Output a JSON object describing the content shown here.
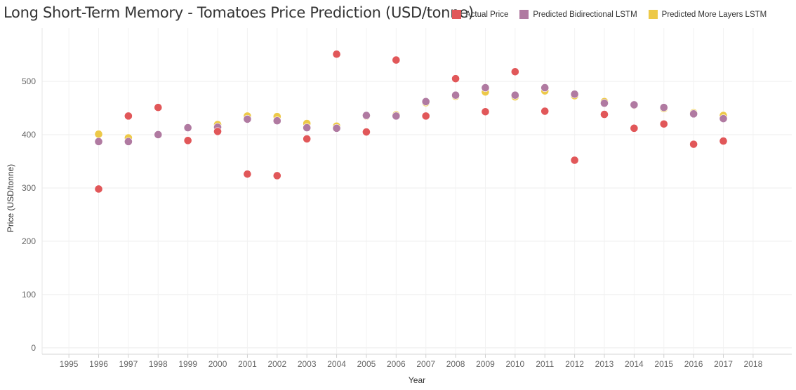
{
  "title": "Long Short-Term Memory - Tomatoes Price Prediction (USD/tonne)",
  "legend": [
    {
      "label": "Actual Price",
      "color": "#e15759"
    },
    {
      "label": "Predicted Bidirectional LSTM",
      "color": "#b07aa1"
    },
    {
      "label": "Predicted More Layers  LSTM",
      "color": "#edc948"
    }
  ],
  "chart_data": {
    "type": "scatter",
    "title": "Long Short-Term Memory - Tomatoes Price Prediction (USD/tonne)",
    "xlabel": "Year",
    "ylabel": "Price (USD/tonne)",
    "x_ticks": [
      "1995",
      "1996",
      "1997",
      "1998",
      "1999",
      "2000",
      "2001",
      "2002",
      "2003",
      "2004",
      "2005",
      "2006",
      "2007",
      "2008",
      "2009",
      "2010",
      "2011",
      "2012",
      "2013",
      "2014",
      "2015",
      "2016",
      "2017",
      "2018"
    ],
    "y_ticks": [
      0,
      100,
      200,
      300,
      400,
      500
    ],
    "xlim": [
      1994.1,
      2019.3
    ],
    "ylim": [
      -12,
      600
    ],
    "grid": true,
    "legend_position": "top-right",
    "series": [
      {
        "name": "Predicted More Layers  LSTM",
        "color": "#edc948",
        "x": [
          1996,
          1997,
          1998,
          1999,
          2000,
          2001,
          2002,
          2003,
          2004,
          2005,
          2006,
          2007,
          2008,
          2009,
          2010,
          2011,
          2012,
          2013,
          2014,
          2015,
          2016,
          2017
        ],
        "y": [
          401,
          394,
          400,
          413,
          419,
          435,
          434,
          421,
          416,
          435,
          437,
          460,
          472,
          480,
          471,
          482,
          473,
          462,
          455,
          449,
          441,
          436
        ]
      },
      {
        "name": "Predicted Bidirectional LSTM",
        "color": "#b07aa1",
        "x": [
          1996,
          1997,
          1998,
          1999,
          2000,
          2001,
          2002,
          2003,
          2004,
          2005,
          2006,
          2007,
          2008,
          2009,
          2010,
          2011,
          2012,
          2013,
          2014,
          2015,
          2016,
          2017
        ],
        "y": [
          387,
          387,
          400,
          413,
          414,
          429,
          426,
          413,
          412,
          436,
          435,
          462,
          474,
          488,
          474,
          488,
          476,
          459,
          456,
          451,
          439,
          430
        ]
      },
      {
        "name": "Actual Price",
        "color": "#e15759",
        "x": [
          1996,
          1997,
          1998,
          1999,
          2000,
          2001,
          2002,
          2003,
          2004,
          2005,
          2006,
          2007,
          2008,
          2009,
          2010,
          2011,
          2012,
          2013,
          2014,
          2015,
          2016,
          2017
        ],
        "y": [
          298,
          435,
          451,
          389,
          406,
          326,
          323,
          392,
          551,
          405,
          540,
          435,
          505,
          443,
          518,
          444,
          352,
          438,
          412,
          420,
          382,
          388
        ]
      }
    ]
  }
}
